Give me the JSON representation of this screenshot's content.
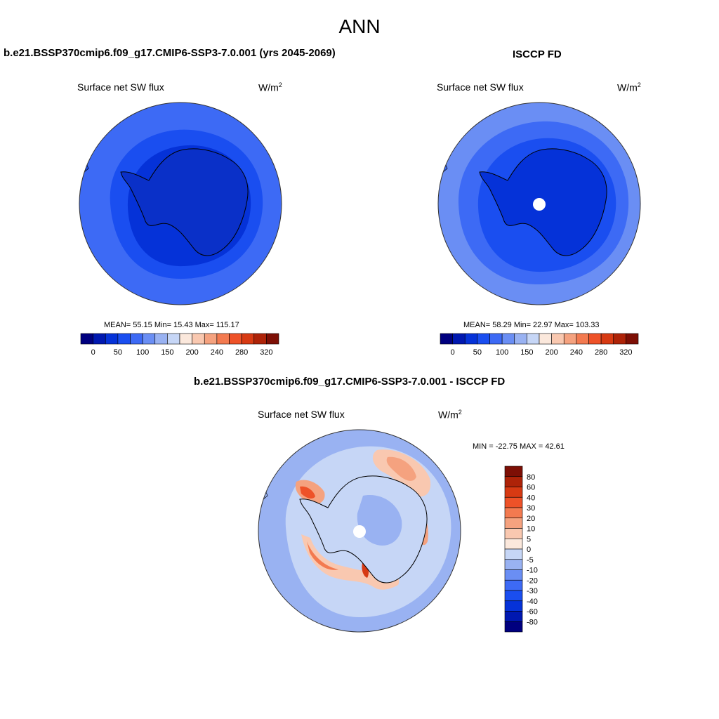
{
  "figure": {
    "title": "ANN"
  },
  "panels": {
    "model": {
      "case_title": "b.e21.BSSP370cmip6.f09_g17.CMIP6-SSP3-7.0.001 (yrs 2045-2069)",
      "variable": "Surface net SW flux",
      "units": "W/m",
      "units_sup": "2",
      "stats": "MEAN=  55.15  Min=  15.43  Max= 115.17"
    },
    "obs": {
      "case_title": "ISCCP FD",
      "variable": "Surface net SW flux",
      "units": "W/m",
      "units_sup": "2",
      "stats": "MEAN=  58.29  Min=  22.97  Max= 103.33"
    },
    "diff": {
      "case_title": "b.e21.BSSP370cmip6.f09_g17.CMIP6-SSP3-7.0.001 - ISCCP FD",
      "variable": "Surface net SW flux",
      "units": "W/m",
      "units_sup": "2",
      "stats": "MIN = -22.75 MAX =  42.61"
    }
  },
  "colorbars": {
    "field": {
      "colors": [
        "#00007f",
        "#0018b0",
        "#0532d8",
        "#1a4ef0",
        "#3d6af5",
        "#6a8ef4",
        "#99b2f2",
        "#c6d6f6",
        "#fbe8dc",
        "#f9c8b0",
        "#f5a27f",
        "#f37a50",
        "#ee5228",
        "#d73a13",
        "#ae2308",
        "#7d0f05"
      ],
      "labels": [
        "0",
        "50",
        "100",
        "150",
        "200",
        "240",
        "280",
        "320"
      ]
    },
    "diff": {
      "colors": [
        "#00007f",
        "#0018b0",
        "#0532d8",
        "#1a4ef0",
        "#3d6af5",
        "#6a8ef4",
        "#99b2f2",
        "#c6d6f6",
        "#fbe8dc",
        "#f9c8b0",
        "#f5a27f",
        "#f37a50",
        "#ee5228",
        "#d73a13",
        "#ae2308",
        "#7d0f05"
      ],
      "labels": [
        "80",
        "60",
        "40",
        "30",
        "20",
        "10",
        "5",
        "0",
        "-5",
        "-10",
        "-20",
        "-30",
        "-40",
        "-60",
        "-80"
      ]
    }
  }
}
